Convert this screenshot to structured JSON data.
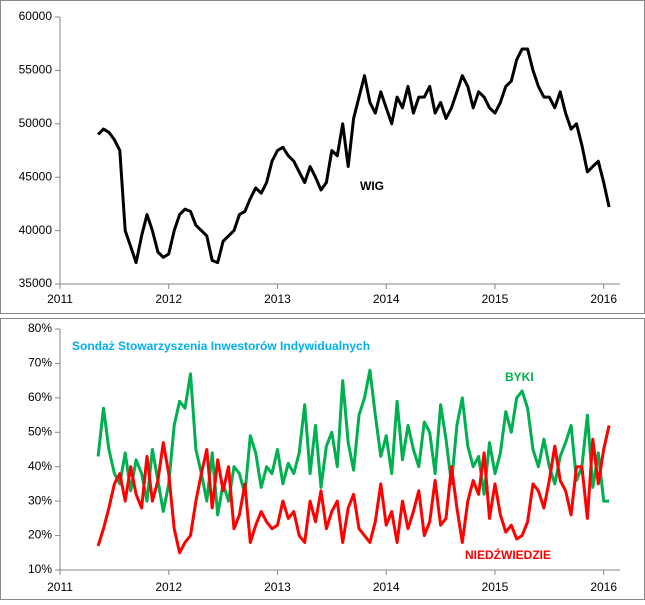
{
  "chart_data": [
    {
      "type": "line",
      "label": "WIG",
      "x": [
        2011.35,
        2011.4,
        2011.45,
        2011.5,
        2011.55,
        2011.6,
        2011.65,
        2011.7,
        2011.75,
        2011.8,
        2011.85,
        2011.9,
        2011.95,
        2012,
        2012.05,
        2012.1,
        2012.15,
        2012.2,
        2012.25,
        2012.3,
        2012.35,
        2012.4,
        2012.45,
        2012.5,
        2012.55,
        2012.6,
        2012.65,
        2012.7,
        2012.75,
        2012.8,
        2012.85,
        2012.9,
        2012.95,
        2013,
        2013.05,
        2013.1,
        2013.15,
        2013.2,
        2013.25,
        2013.3,
        2013.35,
        2013.4,
        2013.45,
        2013.5,
        2013.55,
        2013.6,
        2013.65,
        2013.7,
        2013.75,
        2013.8,
        2013.85,
        2013.9,
        2013.95,
        2014,
        2014.05,
        2014.1,
        2014.15,
        2014.2,
        2014.25,
        2014.3,
        2014.35,
        2014.4,
        2014.45,
        2014.5,
        2014.55,
        2014.6,
        2014.65,
        2014.7,
        2014.75,
        2014.8,
        2014.85,
        2014.9,
        2014.95,
        2015,
        2015.05,
        2015.1,
        2015.15,
        2015.2,
        2015.25,
        2015.3,
        2015.35,
        2015.4,
        2015.45,
        2015.5,
        2015.55,
        2015.6,
        2015.65,
        2015.7,
        2015.75,
        2015.8,
        2015.85,
        2015.9,
        2015.95,
        2016,
        2016.05
      ],
      "series": [
        {
          "color": "#000000",
          "values": [
            49000,
            49500,
            49200,
            48500,
            47500,
            40000,
            38500,
            37000,
            39500,
            41500,
            40000,
            38000,
            37500,
            37800,
            40000,
            41500,
            42000,
            41800,
            40500,
            40000,
            39500,
            37200,
            37000,
            39000,
            39500,
            40000,
            41500,
            41800,
            43000,
            44000,
            43500,
            44500,
            46500,
            47500,
            47800,
            47000,
            46500,
            45500,
            44500,
            46000,
            45000,
            43800,
            44500,
            47500,
            47000,
            50000,
            46000,
            50500,
            52500,
            54500,
            52000,
            51000,
            53000,
            51500,
            50000,
            52500,
            51500,
            53500,
            51000,
            52500,
            52500,
            53500,
            51000,
            52000,
            50500,
            51500,
            53000,
            54500,
            53500,
            51500,
            53000,
            52500,
            51500,
            51000,
            52000,
            53500,
            54000,
            56000,
            57000,
            57000,
            55000,
            53500,
            52500,
            52500,
            51500,
            53000,
            51000,
            49500,
            50000,
            48000,
            45500,
            46000,
            46500,
            44500,
            42200
          ]
        }
      ],
      "xlim": [
        2011,
        2016.15
      ],
      "xticks": [
        2011,
        2012,
        2013,
        2014,
        2015,
        2016
      ],
      "ylim": [
        35000,
        60000
      ],
      "yticks": [
        35000,
        40000,
        45000,
        50000,
        55000,
        60000
      ]
    },
    {
      "type": "line",
      "title": "Sondaż Stowarzyszenia Inwestorów Indywidualnych",
      "x": [
        2011.35,
        2011.4,
        2011.45,
        2011.5,
        2011.55,
        2011.6,
        2011.65,
        2011.7,
        2011.75,
        2011.8,
        2011.85,
        2011.9,
        2011.95,
        2012,
        2012.05,
        2012.1,
        2012.15,
        2012.2,
        2012.25,
        2012.3,
        2012.35,
        2012.4,
        2012.45,
        2012.5,
        2012.55,
        2012.6,
        2012.65,
        2012.7,
        2012.75,
        2012.8,
        2012.85,
        2012.9,
        2012.95,
        2013,
        2013.05,
        2013.1,
        2013.15,
        2013.2,
        2013.25,
        2013.3,
        2013.35,
        2013.4,
        2013.45,
        2013.5,
        2013.55,
        2013.6,
        2013.65,
        2013.7,
        2013.75,
        2013.8,
        2013.85,
        2013.9,
        2013.95,
        2014,
        2014.05,
        2014.1,
        2014.15,
        2014.2,
        2014.25,
        2014.3,
        2014.35,
        2014.4,
        2014.45,
        2014.5,
        2014.55,
        2014.6,
        2014.65,
        2014.7,
        2014.75,
        2014.8,
        2014.85,
        2014.9,
        2014.95,
        2015,
        2015.05,
        2015.1,
        2015.15,
        2015.2,
        2015.25,
        2015.3,
        2015.35,
        2015.4,
        2015.45,
        2015.5,
        2015.55,
        2015.6,
        2015.65,
        2015.7,
        2015.75,
        2015.8,
        2015.85,
        2015.9,
        2015.95,
        2016,
        2016.05
      ],
      "series": [
        {
          "name": "BYKI",
          "color": "#00b050",
          "values": [
            43,
            57,
            45,
            38,
            35,
            44,
            33,
            42,
            38,
            30,
            45,
            36,
            27,
            35,
            52,
            59,
            57,
            67,
            45,
            38,
            30,
            44,
            26,
            35,
            30,
            40,
            38,
            32,
            49,
            44,
            34,
            40,
            38,
            45,
            35,
            41,
            38,
            44,
            58,
            38,
            52,
            34,
            46,
            50,
            40,
            65,
            47,
            39,
            55,
            60,
            68,
            55,
            43,
            49,
            38,
            59,
            42,
            52,
            45,
            40,
            53,
            50,
            38,
            58,
            48,
            35,
            52,
            60,
            46,
            40,
            43,
            32,
            47,
            38,
            44,
            56,
            50,
            60,
            62,
            57,
            45,
            40,
            48,
            40,
            35,
            43,
            47,
            52,
            36,
            40,
            55,
            34,
            44,
            30,
            30
          ]
        },
        {
          "name": "NIEDŹWIEDZIE",
          "color": "#ff0000",
          "values": [
            17,
            22,
            28,
            35,
            38,
            30,
            40,
            32,
            28,
            43,
            30,
            36,
            47,
            38,
            22,
            15,
            18,
            20,
            30,
            38,
            45,
            28,
            42,
            33,
            40,
            22,
            26,
            35,
            18,
            23,
            27,
            24,
            22,
            23,
            30,
            25,
            27,
            20,
            18,
            30,
            24,
            33,
            22,
            27,
            30,
            18,
            28,
            32,
            22,
            20,
            18,
            24,
            35,
            23,
            27,
            18,
            30,
            22,
            27,
            33,
            20,
            24,
            36,
            23,
            25,
            40,
            28,
            18,
            30,
            36,
            32,
            44,
            25,
            35,
            26,
            21,
            23,
            19,
            20,
            24,
            35,
            33,
            28,
            36,
            46,
            36,
            33,
            26,
            40,
            40,
            25,
            48,
            35,
            45,
            52
          ]
        }
      ],
      "xlim": [
        2011,
        2016.15
      ],
      "xticks": [
        2011,
        2012,
        2013,
        2014,
        2015,
        2016
      ],
      "ylim": [
        10,
        80
      ],
      "yticks": [
        {
          "value": 10,
          "label": "10%"
        },
        {
          "value": 20,
          "label": "20%"
        },
        {
          "value": 30,
          "label": "30%"
        },
        {
          "value": 40,
          "label": "40%"
        },
        {
          "value": 50,
          "label": "50%"
        },
        {
          "value": 60,
          "label": "60%"
        },
        {
          "value": 70,
          "label": "70%"
        },
        {
          "value": 80,
          "label": "80%"
        }
      ]
    }
  ]
}
